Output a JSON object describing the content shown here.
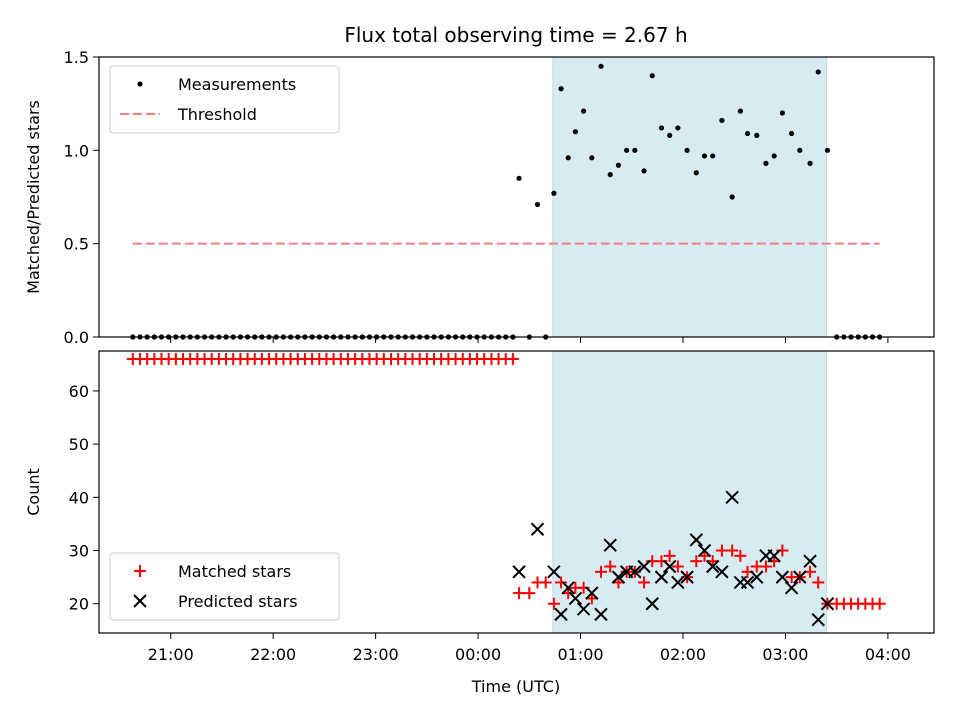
{
  "chart_data": {
    "type": "scatter",
    "title": "Flux total observing time = 2.67 h",
    "xlabel": "Time (UTC)",
    "xlim": [
      20.3,
      28.45
    ],
    "x_ticks": [
      {
        "value": 21,
        "label": "21:00"
      },
      {
        "value": 22,
        "label": "22:00"
      },
      {
        "value": 23,
        "label": "23:00"
      },
      {
        "value": 24,
        "label": "00:00"
      },
      {
        "value": 25,
        "label": "01:00"
      },
      {
        "value": 26,
        "label": "02:00"
      },
      {
        "value": 27,
        "label": "03:00"
      },
      {
        "value": 28,
        "label": "04:00"
      }
    ],
    "shaded_span": [
      24.73,
      27.4
    ],
    "panels": [
      {
        "id": "ratio",
        "ylabel": "Matched/Predicted stars",
        "ylim": [
          0,
          1.5
        ],
        "yticks": [
          0.0,
          0.5,
          1.0,
          1.5
        ],
        "ytick_labels": [
          "0.0",
          "0.5",
          "1.0",
          "1.5"
        ],
        "legend": {
          "position": "upper-left",
          "entries": [
            "Measurements",
            "Threshold"
          ]
        },
        "series": [
          {
            "name": "Measurements",
            "marker": "dot",
            "color": "#000000",
            "points": [
              [
                20.63,
                0
              ],
              [
                20.7,
                0
              ],
              [
                20.77,
                0
              ],
              [
                20.84,
                0
              ],
              [
                20.91,
                0
              ],
              [
                20.98,
                0
              ],
              [
                21.05,
                0
              ],
              [
                21.12,
                0
              ],
              [
                21.19,
                0
              ],
              [
                21.26,
                0
              ],
              [
                21.33,
                0
              ],
              [
                21.4,
                0
              ],
              [
                21.47,
                0
              ],
              [
                21.54,
                0
              ],
              [
                21.61,
                0
              ],
              [
                21.68,
                0
              ],
              [
                21.75,
                0
              ],
              [
                21.82,
                0
              ],
              [
                21.89,
                0
              ],
              [
                21.96,
                0
              ],
              [
                22.03,
                0
              ],
              [
                22.1,
                0
              ],
              [
                22.17,
                0
              ],
              [
                22.24,
                0
              ],
              [
                22.31,
                0
              ],
              [
                22.38,
                0
              ],
              [
                22.45,
                0
              ],
              [
                22.52,
                0
              ],
              [
                22.59,
                0
              ],
              [
                22.66,
                0
              ],
              [
                22.73,
                0
              ],
              [
                22.8,
                0
              ],
              [
                22.87,
                0
              ],
              [
                22.94,
                0
              ],
              [
                23.01,
                0
              ],
              [
                23.08,
                0
              ],
              [
                23.15,
                0
              ],
              [
                23.22,
                0
              ],
              [
                23.29,
                0
              ],
              [
                23.36,
                0
              ],
              [
                23.43,
                0
              ],
              [
                23.5,
                0
              ],
              [
                23.57,
                0
              ],
              [
                23.64,
                0
              ],
              [
                23.71,
                0
              ],
              [
                23.78,
                0
              ],
              [
                23.85,
                0
              ],
              [
                23.92,
                0
              ],
              [
                23.99,
                0
              ],
              [
                24.06,
                0
              ],
              [
                24.13,
                0
              ],
              [
                24.2,
                0
              ],
              [
                24.27,
                0
              ],
              [
                24.34,
                0
              ],
              [
                24.4,
                0.85
              ],
              [
                24.5,
                0
              ],
              [
                24.58,
                0.71
              ],
              [
                24.66,
                0
              ],
              [
                24.74,
                0.77
              ],
              [
                24.81,
                1.33
              ],
              [
                24.88,
                0.96
              ],
              [
                24.95,
                1.1
              ],
              [
                25.03,
                1.21
              ],
              [
                25.11,
                0.96
              ],
              [
                25.2,
                1.45
              ],
              [
                25.29,
                0.87
              ],
              [
                25.37,
                0.92
              ],
              [
                25.45,
                1.0
              ],
              [
                25.53,
                1.0
              ],
              [
                25.62,
                0.89
              ],
              [
                25.7,
                1.4
              ],
              [
                25.79,
                1.12
              ],
              [
                25.87,
                1.08
              ],
              [
                25.95,
                1.12
              ],
              [
                26.04,
                1.0
              ],
              [
                26.13,
                0.88
              ],
              [
                26.21,
                0.97
              ],
              [
                26.29,
                0.97
              ],
              [
                26.38,
                1.16
              ],
              [
                26.48,
                0.75
              ],
              [
                26.56,
                1.21
              ],
              [
                26.63,
                1.09
              ],
              [
                26.72,
                1.08
              ],
              [
                26.81,
                0.93
              ],
              [
                26.89,
                0.97
              ],
              [
                26.97,
                1.2
              ],
              [
                27.06,
                1.09
              ],
              [
                27.14,
                1.0
              ],
              [
                27.24,
                0.93
              ],
              [
                27.32,
                1.42
              ],
              [
                27.41,
                1.0
              ],
              [
                27.5,
                0
              ],
              [
                27.57,
                0
              ],
              [
                27.64,
                0
              ],
              [
                27.71,
                0
              ],
              [
                27.78,
                0
              ],
              [
                27.85,
                0
              ],
              [
                27.92,
                0
              ]
            ]
          },
          {
            "name": "Threshold",
            "marker": "dashed-line",
            "color": "#f08080",
            "points": [
              [
                20.63,
                0.5
              ],
              [
                27.92,
                0.5
              ]
            ]
          }
        ]
      },
      {
        "id": "count",
        "ylabel": "Count",
        "ylim": [
          14.5,
          67.5
        ],
        "yticks": [
          20,
          30,
          40,
          50,
          60
        ],
        "ytick_labels": [
          "20",
          "30",
          "40",
          "50",
          "60"
        ],
        "legend": {
          "position": "lower-left",
          "entries": [
            "Matched stars",
            "Predicted stars"
          ]
        },
        "series": [
          {
            "name": "Matched stars",
            "marker": "plus",
            "color": "#ff0000",
            "points": [
              [
                20.63,
                66
              ],
              [
                20.7,
                66
              ],
              [
                20.77,
                66
              ],
              [
                20.84,
                66
              ],
              [
                20.91,
                66
              ],
              [
                20.98,
                66
              ],
              [
                21.05,
                66
              ],
              [
                21.12,
                66
              ],
              [
                21.19,
                66
              ],
              [
                21.26,
                66
              ],
              [
                21.33,
                66
              ],
              [
                21.4,
                66
              ],
              [
                21.47,
                66
              ],
              [
                21.54,
                66
              ],
              [
                21.61,
                66
              ],
              [
                21.68,
                66
              ],
              [
                21.75,
                66
              ],
              [
                21.82,
                66
              ],
              [
                21.89,
                66
              ],
              [
                21.96,
                66
              ],
              [
                22.03,
                66
              ],
              [
                22.1,
                66
              ],
              [
                22.17,
                66
              ],
              [
                22.24,
                66
              ],
              [
                22.31,
                66
              ],
              [
                22.38,
                66
              ],
              [
                22.45,
                66
              ],
              [
                22.52,
                66
              ],
              [
                22.59,
                66
              ],
              [
                22.66,
                66
              ],
              [
                22.73,
                66
              ],
              [
                22.8,
                66
              ],
              [
                22.87,
                66
              ],
              [
                22.94,
                66
              ],
              [
                23.01,
                66
              ],
              [
                23.08,
                66
              ],
              [
                23.15,
                66
              ],
              [
                23.22,
                66
              ],
              [
                23.29,
                66
              ],
              [
                23.36,
                66
              ],
              [
                23.43,
                66
              ],
              [
                23.5,
                66
              ],
              [
                23.57,
                66
              ],
              [
                23.64,
                66
              ],
              [
                23.71,
                66
              ],
              [
                23.78,
                66
              ],
              [
                23.85,
                66
              ],
              [
                23.92,
                66
              ],
              [
                23.99,
                66
              ],
              [
                24.06,
                66
              ],
              [
                24.13,
                66
              ],
              [
                24.2,
                66
              ],
              [
                24.27,
                66
              ],
              [
                24.34,
                66
              ],
              [
                24.4,
                22
              ],
              [
                24.5,
                22
              ],
              [
                24.58,
                24
              ],
              [
                24.66,
                24
              ],
              [
                24.74,
                20
              ],
              [
                24.81,
                24
              ],
              [
                24.88,
                22
              ],
              [
                24.95,
                23
              ],
              [
                25.03,
                23
              ],
              [
                25.11,
                21
              ],
              [
                25.2,
                26
              ],
              [
                25.29,
                27
              ],
              [
                25.37,
                24
              ],
              [
                25.45,
                26
              ],
              [
                25.53,
                26
              ],
              [
                25.62,
                24
              ],
              [
                25.7,
                28
              ],
              [
                25.79,
                28
              ],
              [
                25.87,
                29
              ],
              [
                25.95,
                27
              ],
              [
                26.04,
                25
              ],
              [
                26.13,
                28
              ],
              [
                26.21,
                29
              ],
              [
                26.29,
                28
              ],
              [
                26.38,
                30
              ],
              [
                26.48,
                30
              ],
              [
                26.56,
                29
              ],
              [
                26.63,
                26
              ],
              [
                26.72,
                27
              ],
              [
                26.81,
                27
              ],
              [
                26.89,
                28
              ],
              [
                26.97,
                30
              ],
              [
                27.06,
                25
              ],
              [
                27.14,
                25
              ],
              [
                27.24,
                26
              ],
              [
                27.32,
                24
              ],
              [
                27.41,
                20
              ],
              [
                27.5,
                20
              ],
              [
                27.57,
                20
              ],
              [
                27.64,
                20
              ],
              [
                27.71,
                20
              ],
              [
                27.78,
                20
              ],
              [
                27.85,
                20
              ],
              [
                27.92,
                20
              ]
            ]
          },
          {
            "name": "Predicted stars",
            "marker": "x",
            "color": "#000000",
            "points": [
              [
                24.4,
                26
              ],
              [
                24.58,
                34
              ],
              [
                24.74,
                26
              ],
              [
                24.81,
                18
              ],
              [
                24.88,
                23
              ],
              [
                24.95,
                21
              ],
              [
                25.03,
                19
              ],
              [
                25.11,
                22
              ],
              [
                25.2,
                18
              ],
              [
                25.29,
                31
              ],
              [
                25.37,
                25
              ],
              [
                25.45,
                26
              ],
              [
                25.53,
                26
              ],
              [
                25.62,
                27
              ],
              [
                25.7,
                20
              ],
              [
                25.79,
                25
              ],
              [
                25.87,
                27
              ],
              [
                25.95,
                24
              ],
              [
                26.04,
                25
              ],
              [
                26.13,
                32
              ],
              [
                26.21,
                30
              ],
              [
                26.29,
                27
              ],
              [
                26.38,
                26
              ],
              [
                26.48,
                40
              ],
              [
                26.56,
                24
              ],
              [
                26.63,
                24
              ],
              [
                26.72,
                25
              ],
              [
                26.81,
                29
              ],
              [
                26.89,
                29
              ],
              [
                26.97,
                25
              ],
              [
                27.06,
                23
              ],
              [
                27.14,
                25
              ],
              [
                27.24,
                28
              ],
              [
                27.32,
                17
              ],
              [
                27.41,
                20
              ]
            ]
          }
        ]
      }
    ]
  }
}
